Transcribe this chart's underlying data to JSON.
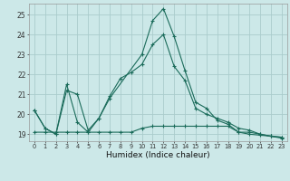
{
  "xlabel": "Humidex (Indice chaleur)",
  "background_color": "#cce8e8",
  "grid_color": "#aacccc",
  "line_color": "#1a6b5a",
  "x_ticks": [
    0,
    1,
    2,
    3,
    4,
    5,
    6,
    7,
    8,
    9,
    10,
    11,
    12,
    13,
    14,
    15,
    16,
    17,
    18,
    19,
    20,
    21,
    22,
    23
  ],
  "y_ticks": [
    19,
    20,
    21,
    22,
    23,
    24,
    25
  ],
  "ylim": [
    18.65,
    25.55
  ],
  "xlim": [
    -0.5,
    23.5
  ],
  "curve1_x": [
    0,
    1,
    2,
    3,
    4,
    5,
    6,
    7,
    10,
    11,
    12,
    13,
    14,
    15,
    16,
    17,
    18,
    19,
    20,
    21,
    22,
    23
  ],
  "curve1_y": [
    20.2,
    19.3,
    19.0,
    21.5,
    19.6,
    19.1,
    19.8,
    20.8,
    23.0,
    24.7,
    25.3,
    23.9,
    22.2,
    20.6,
    20.3,
    19.7,
    19.5,
    19.1,
    19.1,
    19.0,
    18.9,
    18.8
  ],
  "curve2_x": [
    0,
    1,
    2,
    3,
    4,
    5,
    6,
    7,
    8,
    9,
    10,
    11,
    12,
    13,
    14,
    15,
    16,
    17,
    18,
    19,
    20,
    21,
    22,
    23
  ],
  "curve2_y": [
    20.2,
    19.3,
    19.0,
    21.2,
    21.0,
    19.2,
    19.8,
    20.9,
    21.8,
    22.1,
    22.5,
    23.5,
    24.0,
    22.4,
    21.7,
    20.3,
    20.0,
    19.8,
    19.6,
    19.3,
    19.2,
    19.0,
    18.9,
    18.85
  ],
  "curve3_x": [
    0,
    1,
    2,
    3,
    4,
    5,
    6,
    7,
    8,
    9,
    10,
    11,
    12,
    13,
    14,
    15,
    16,
    17,
    18,
    19,
    20,
    21,
    22,
    23
  ],
  "curve3_y": [
    19.1,
    19.1,
    19.1,
    19.1,
    19.1,
    19.1,
    19.1,
    19.1,
    19.1,
    19.1,
    19.3,
    19.4,
    19.4,
    19.4,
    19.4,
    19.4,
    19.4,
    19.4,
    19.4,
    19.1,
    19.0,
    18.95,
    18.9,
    18.85
  ]
}
